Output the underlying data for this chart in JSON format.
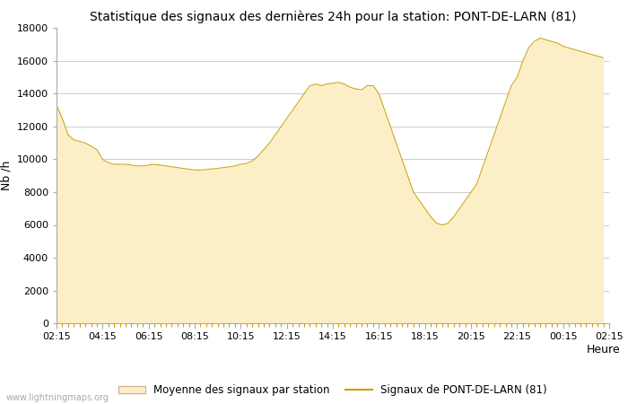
{
  "title": "Statistique des signaux des dernières 24h pour la station: PONT-DE-LARN (81)",
  "xlabel": "Heure",
  "ylabel": "Nb /h",
  "watermark": "www.lightningmaps.org",
  "legend_area": "Moyenne des signaux par station",
  "legend_line": "Signaux de PONT-DE-LARN (81)",
  "fill_color": "#FCEFC7",
  "fill_edge_color": "#D4B483",
  "line_color": "#C8A000",
  "ylim": [
    0,
    18000
  ],
  "yticks": [
    0,
    2000,
    4000,
    6000,
    8000,
    10000,
    12000,
    14000,
    16000,
    18000
  ],
  "xtick_labels": [
    "02:15",
    "04:15",
    "06:15",
    "08:15",
    "10:15",
    "12:15",
    "14:15",
    "16:15",
    "18:15",
    "20:15",
    "22:15",
    "00:15",
    "02:15"
  ],
  "x": [
    0,
    1,
    2,
    3,
    4,
    5,
    6,
    7,
    8,
    9,
    10,
    11,
    12,
    13,
    14,
    15,
    16,
    17,
    18,
    19,
    20,
    21,
    22,
    23,
    24,
    25,
    26,
    27,
    28,
    29,
    30,
    31,
    32,
    33,
    34,
    35,
    36,
    37,
    38,
    39,
    40,
    41,
    42,
    43,
    44,
    45,
    46,
    47,
    48,
    49,
    50,
    51,
    52,
    53,
    54,
    55,
    56,
    57,
    58,
    59,
    60,
    61,
    62,
    63,
    64,
    65,
    66,
    67,
    68,
    69,
    70,
    71,
    72,
    73,
    74,
    75,
    76,
    77,
    78,
    79,
    80,
    81,
    82,
    83,
    84,
    85,
    86,
    87,
    88,
    89,
    90,
    91,
    92,
    93,
    94,
    95
  ],
  "y": [
    13300,
    12500,
    11500,
    11200,
    11100,
    11000,
    10800,
    10600,
    10000,
    9800,
    9700,
    9700,
    9700,
    9650,
    9600,
    9600,
    9650,
    9700,
    9650,
    9600,
    9550,
    9500,
    9450,
    9400,
    9350,
    9350,
    9380,
    9420,
    9450,
    9500,
    9550,
    9600,
    9700,
    9750,
    9900,
    10200,
    10600,
    11000,
    11500,
    12000,
    12500,
    13000,
    13500,
    14000,
    14500,
    14600,
    14500,
    14600,
    14650,
    14700,
    14600,
    14400,
    14300,
    14250,
    14500,
    14500,
    14000,
    13000,
    12000,
    11000,
    10000,
    9000,
    8000,
    7500,
    7000,
    6500,
    6100,
    6000,
    6100,
    6500,
    7000,
    7500,
    8000,
    8500,
    9500,
    10500,
    11500,
    12500,
    13500,
    14500,
    15000,
    16000,
    16800,
    17200,
    17400,
    17300,
    17200,
    17100,
    16900,
    16800,
    16700,
    16600,
    16500,
    16400,
    16300,
    16200
  ]
}
